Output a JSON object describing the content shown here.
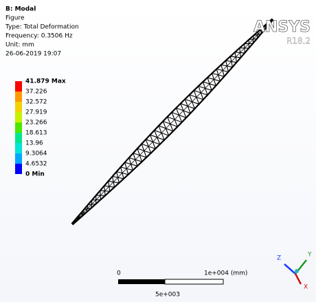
{
  "header": {
    "title": "B: Modal",
    "lines": [
      "Figure",
      "Type: Total Deformation",
      "Frequency: 0.3506 Hz",
      "Unit: mm",
      "26-06-2019 19:07"
    ]
  },
  "legend": {
    "labels": [
      "41.879 Max",
      "37.226",
      "32.572",
      "27.919",
      "23.266",
      "18.613",
      "13.96",
      "9.3064",
      "4.6532",
      "0 Min"
    ],
    "colors": [
      "#ff0000",
      "#ff9900",
      "#f2d200",
      "#c8f000",
      "#4ee600",
      "#00e690",
      "#00e6d8",
      "#00a8ff",
      "#0000ff"
    ]
  },
  "logo": {
    "name": "ANSYS",
    "version": "R18.2"
  },
  "scale_bar": {
    "start": "0",
    "end": "1e+004 (mm)",
    "mid": "5e+003"
  },
  "triad": {
    "axes": [
      "Z",
      "Y",
      "X"
    ]
  }
}
